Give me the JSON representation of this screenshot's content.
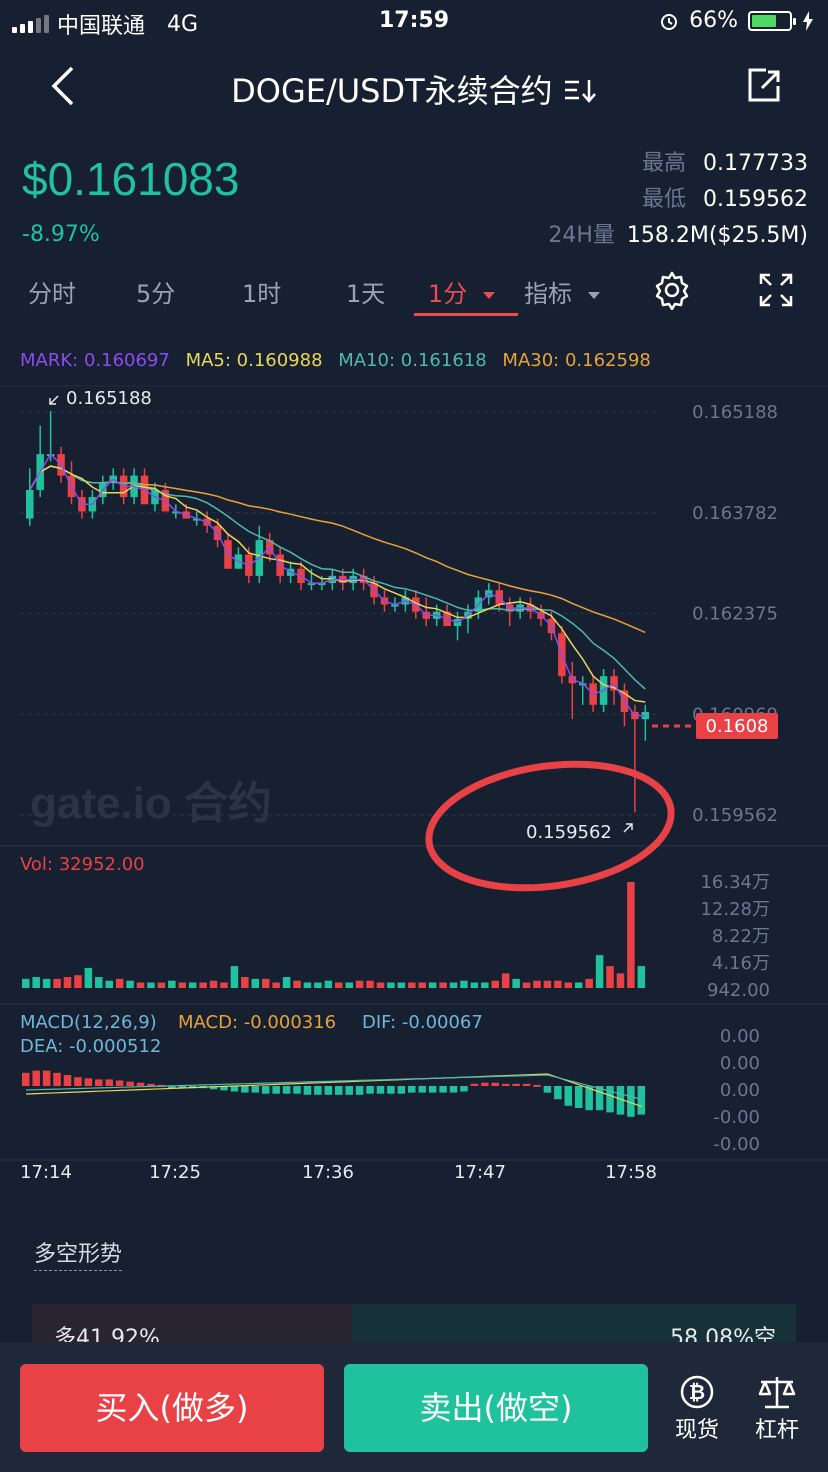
{
  "status": {
    "carrier": "中国联通",
    "network": "4G",
    "time": "17:59",
    "battery": "66%"
  },
  "nav": {
    "title": "DOGE/USDT永续合约"
  },
  "ticker": {
    "price": "$0.161083",
    "change": "-8.97%",
    "high_label": "最高",
    "high": "0.177733",
    "low_label": "最低",
    "low": "0.159562",
    "vol_label": "24H量",
    "vol": "158.2M($25.5M)"
  },
  "tabs": {
    "t1": "分时",
    "t2": "5分",
    "t3": "1时",
    "t4": "1天",
    "t5": "1分",
    "t6": "指标"
  },
  "mlabels": {
    "mark": "MARK: 0.160697",
    "ma5": "MA5: 0.160988",
    "ma10": "MA10: 0.161618",
    "ma30": "MA30: 0.162598"
  },
  "colors": {
    "up": "#1fc29c",
    "down": "#e84146",
    "mark": "#8a4cf0",
    "ma5": "#e8d65a",
    "ma10": "#4fb8b0",
    "ma30": "#e8a23a",
    "bg": "#172030"
  },
  "chart_data": {
    "type": "candlestick",
    "x_ticks": [
      "17:14",
      "17:25",
      "17:36",
      "17:47",
      "17:58"
    ],
    "y_ticks": [
      "0.165188",
      "0.163782",
      "0.162375",
      "0.160969",
      "0.159562"
    ],
    "y_range": [
      0.159562,
      0.165188
    ],
    "max_label": "0.165188",
    "min_label": "0.159562",
    "last_price_label": "0.1608",
    "last_price": 0.1608,
    "watermark": "gate.io 合约",
    "vol_label": "Vol: 32952.00",
    "vol_ticks": [
      "16.34万",
      "12.28万",
      "8.22万",
      "4.16万",
      "942.00"
    ],
    "macd_label": "MACD(12,26,9)",
    "macd_value": "MACD: -0.000316",
    "dif_value": "DIF: -0.00067",
    "dea_value": "DEA: -0.000512",
    "macd_ticks": [
      "0.00",
      "0.00",
      "0.00",
      "-0.00",
      "-0.00"
    ],
    "candles": [
      [
        0.1637,
        0.1641,
        0.1644,
        0.1636
      ],
      [
        0.1641,
        0.1646,
        0.165,
        0.164
      ],
      [
        0.1646,
        0.1646,
        0.1652,
        0.1645
      ],
      [
        0.1646,
        0.1643,
        0.1647,
        0.1642
      ],
      [
        0.1643,
        0.164,
        0.1645,
        0.1639
      ],
      [
        0.164,
        0.1638,
        0.1641,
        0.1637
      ],
      [
        0.1638,
        0.164,
        0.1641,
        0.1637
      ],
      [
        0.164,
        0.1642,
        0.1643,
        0.1639
      ],
      [
        0.1642,
        0.1643,
        0.1644,
        0.1641
      ],
      [
        0.1643,
        0.164,
        0.1644,
        0.1639
      ],
      [
        0.164,
        0.1643,
        0.1644,
        0.1639
      ],
      [
        0.1643,
        0.1639,
        0.1644,
        0.1639
      ],
      [
        0.1639,
        0.1641,
        0.1642,
        0.1638
      ],
      [
        0.1641,
        0.1638,
        0.1642,
        0.1638
      ],
      [
        0.1638,
        0.1638,
        0.1639,
        0.1637
      ],
      [
        0.1638,
        0.1637,
        0.1639,
        0.1637
      ],
      [
        0.1637,
        0.1637,
        0.1638,
        0.1636
      ],
      [
        0.1637,
        0.1636,
        0.1638,
        0.1635
      ],
      [
        0.1636,
        0.1634,
        0.1637,
        0.1633
      ],
      [
        0.1634,
        0.163,
        0.1635,
        0.163
      ],
      [
        0.163,
        0.1632,
        0.1633,
        0.163
      ],
      [
        0.1632,
        0.1629,
        0.1633,
        0.1628
      ],
      [
        0.1629,
        0.1634,
        0.1636,
        0.1628
      ],
      [
        0.1634,
        0.1632,
        0.1635,
        0.1631
      ],
      [
        0.1632,
        0.1629,
        0.1633,
        0.1628
      ],
      [
        0.1629,
        0.163,
        0.1631,
        0.1628
      ],
      [
        0.163,
        0.1628,
        0.1631,
        0.1627
      ],
      [
        0.1628,
        0.1628,
        0.163,
        0.1627
      ],
      [
        0.1628,
        0.1628,
        0.1629,
        0.1627
      ],
      [
        0.1628,
        0.1629,
        0.163,
        0.1627
      ],
      [
        0.1629,
        0.1628,
        0.163,
        0.1627
      ],
      [
        0.1628,
        0.1629,
        0.163,
        0.1627
      ],
      [
        0.1629,
        0.1628,
        0.163,
        0.1627
      ],
      [
        0.1628,
        0.1626,
        0.1629,
        0.1625
      ],
      [
        0.1626,
        0.1625,
        0.1627,
        0.1624
      ],
      [
        0.1625,
        0.1625,
        0.1626,
        0.1624
      ],
      [
        0.1625,
        0.1626,
        0.1627,
        0.1624
      ],
      [
        0.1626,
        0.1624,
        0.1627,
        0.1623
      ],
      [
        0.1624,
        0.1623,
        0.1626,
        0.1622
      ],
      [
        0.1623,
        0.1624,
        0.1625,
        0.1622
      ],
      [
        0.1624,
        0.1622,
        0.1625,
        0.1622
      ],
      [
        0.1622,
        0.1623,
        0.1624,
        0.162
      ],
      [
        0.1623,
        0.1624,
        0.1625,
        0.1621
      ],
      [
        0.1624,
        0.1626,
        0.1627,
        0.1623
      ],
      [
        0.1626,
        0.1627,
        0.1628,
        0.1625
      ],
      [
        0.1627,
        0.1625,
        0.1628,
        0.1624
      ],
      [
        0.1625,
        0.1624,
        0.1626,
        0.1622
      ],
      [
        0.1624,
        0.1625,
        0.1626,
        0.1623
      ],
      [
        0.1625,
        0.1624,
        0.1626,
        0.1623
      ],
      [
        0.1624,
        0.1623,
        0.1625,
        0.1622
      ],
      [
        0.1623,
        0.1621,
        0.1624,
        0.162
      ],
      [
        0.1621,
        0.1615,
        0.1622,
        0.1614
      ],
      [
        0.1615,
        0.1614,
        0.1617,
        0.1609
      ],
      [
        0.1614,
        0.1614,
        0.1615,
        0.1611
      ],
      [
        0.1614,
        0.1611,
        0.1615,
        0.161
      ],
      [
        0.1611,
        0.1615,
        0.1616,
        0.161
      ],
      [
        0.1615,
        0.1613,
        0.1616,
        0.1611
      ],
      [
        0.1613,
        0.161,
        0.1614,
        0.1608
      ],
      [
        0.161,
        0.1609,
        0.1611,
        0.1596
      ],
      [
        0.1609,
        0.161,
        0.1611,
        0.1606
      ]
    ],
    "volumes": [
      5,
      6,
      5,
      5,
      6,
      7,
      11,
      6,
      4,
      5,
      4,
      3,
      3,
      3,
      4,
      3,
      3,
      3,
      4,
      3,
      12,
      6,
      5,
      5,
      3,
      6,
      4,
      3,
      3,
      4,
      3,
      3,
      4,
      4,
      3,
      3,
      3,
      3,
      3,
      3,
      3,
      3,
      4,
      3,
      3,
      4,
      8,
      5,
      3,
      4,
      4,
      4,
      3,
      3,
      5,
      18,
      12,
      8,
      58,
      12
    ],
    "macd": [
      0.6,
      0.7,
      0.7,
      0.6,
      0.5,
      0.4,
      0.35,
      0.3,
      0.3,
      0.25,
      0.2,
      0.15,
      0.1,
      0.05,
      -0.05,
      -0.1,
      -0.1,
      -0.1,
      -0.15,
      -0.2,
      -0.25,
      -0.3,
      -0.3,
      -0.35,
      -0.35,
      -0.35,
      -0.35,
      -0.4,
      -0.4,
      -0.4,
      -0.4,
      -0.4,
      -0.4,
      -0.35,
      -0.35,
      -0.35,
      -0.35,
      -0.3,
      -0.3,
      -0.3,
      -0.3,
      -0.3,
      -0.25,
      0.1,
      0.15,
      0.15,
      0.1,
      0.1,
      0.1,
      0.05,
      -0.3,
      -0.6,
      -0.9,
      -1.0,
      -1.1,
      -1.1,
      -1.2,
      -1.3,
      -1.4,
      -1.3
    ]
  },
  "section": {
    "title": "多空形势",
    "long": "多41.92%",
    "short": "58.08%空",
    "long_ratio": 0.4192
  },
  "bottom": {
    "buy": "买入(做多)",
    "sell": "卖出(做空)",
    "spot": "现货",
    "lever": "杠杆"
  }
}
